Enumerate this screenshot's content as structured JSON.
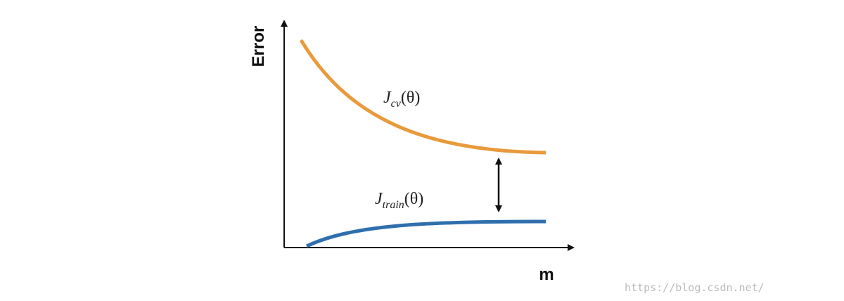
{
  "axes": {
    "y_label": "Error",
    "x_label": "m"
  },
  "curves": [
    {
      "symbol": "J",
      "subscript": "cv",
      "argument": "(θ)"
    },
    {
      "symbol": "J",
      "subscript": "train",
      "argument": "(θ)"
    }
  ],
  "watermark": "https://blog.csdn.net/"
}
